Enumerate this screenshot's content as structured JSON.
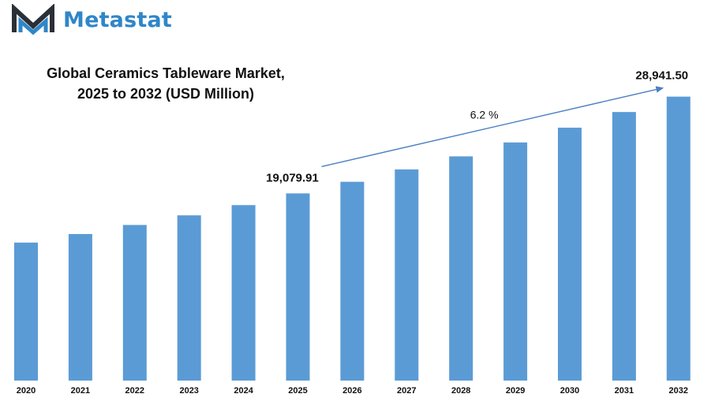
{
  "brand": {
    "name": "Metastat",
    "icon": "metastat-m-logo-icon",
    "colors": {
      "logo_dark": "#2b2f36",
      "logo_blue": "#2f86c8"
    }
  },
  "chart_data": {
    "type": "bar",
    "title_lines": [
      "Global Ceramics Tableware Market,",
      "2025 to 2032 (USD Million)"
    ],
    "xlabel": "",
    "ylabel": "",
    "categories": [
      "2020",
      "2021",
      "2022",
      "2023",
      "2024",
      "2025",
      "2026",
      "2027",
      "2028",
      "2029",
      "2030",
      "2031",
      "2032"
    ],
    "values": [
      14065,
      14936,
      15861,
      16843,
      17885,
      19079.91,
      20263,
      21519,
      22853,
      24270,
      25775,
      27373,
      28941.5
    ],
    "ylim": [
      0,
      31000
    ],
    "grid": false,
    "legend": "none",
    "bar_color": "#5b9bd5",
    "arrow_color": "#4a7fc1",
    "annotations": {
      "start_label": "19,079.91",
      "end_label": "28,941.50",
      "cagr_label": "6.2  %"
    }
  }
}
